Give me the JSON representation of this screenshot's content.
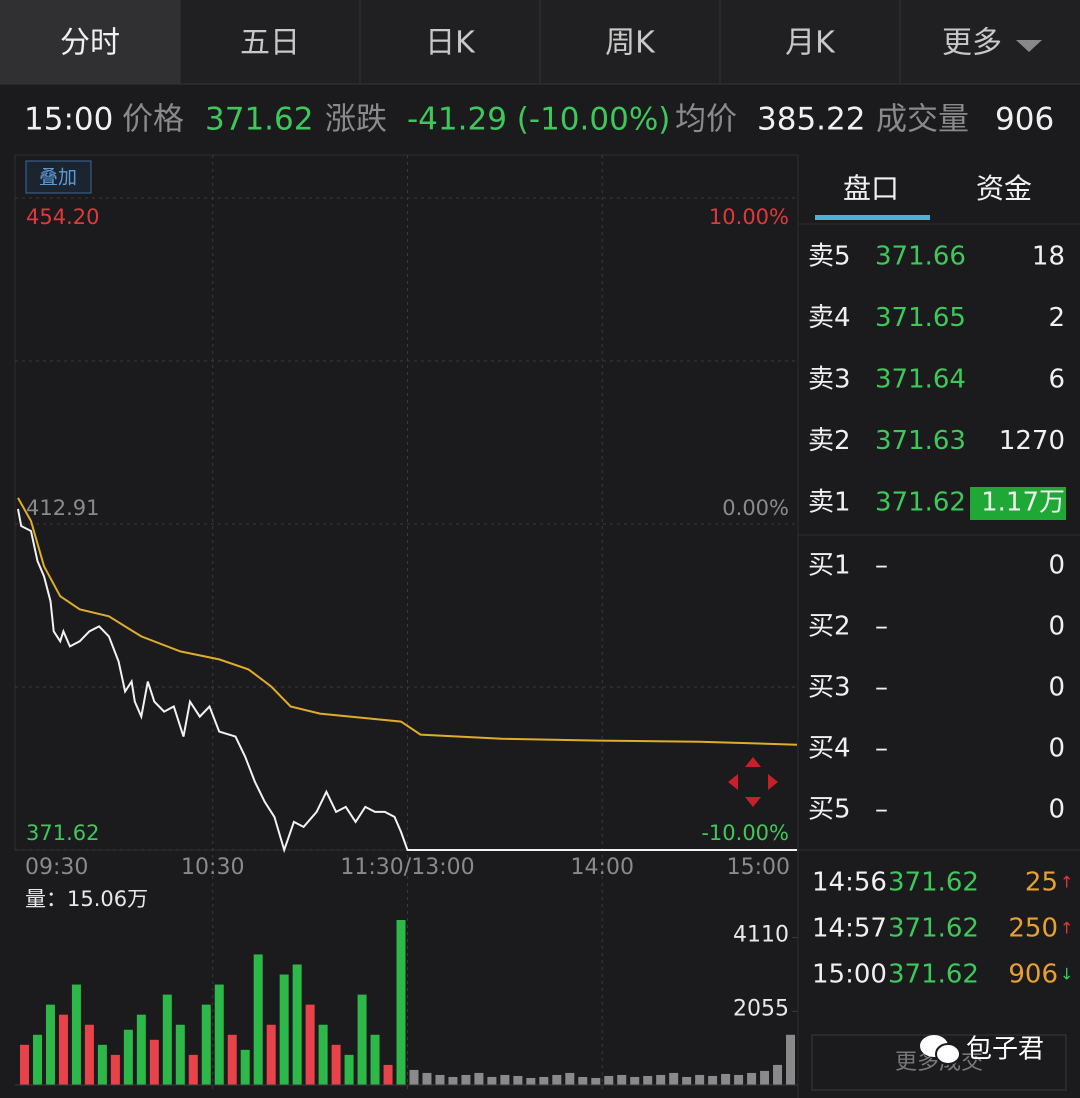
{
  "tabs": [
    "分时",
    "五日",
    "日K",
    "周K",
    "月K",
    "更多"
  ],
  "quote": {
    "time": "15:00",
    "price_label": "价格",
    "price": "371.62",
    "change_label": "涨跌",
    "change": "-41.29 (-10.00%)",
    "avg_label": "均价",
    "avg": "385.22",
    "volume_label": "成交量",
    "volume": "906"
  },
  "overlay_button": "叠加",
  "price_chart": {
    "type": "line",
    "xlim": [
      0,
      240
    ],
    "xticks": [
      {
        "value": 0,
        "label": "09:30"
      },
      {
        "value": 60,
        "label": "10:30"
      },
      {
        "value": 120,
        "label": "11:30/13:00"
      },
      {
        "value": 180,
        "label": "14:00"
      },
      {
        "value": 240,
        "label": "15:00"
      }
    ],
    "ylim": [
      371.62,
      454.2
    ],
    "yticks": [
      {
        "value": 454.2,
        "label": "454.20"
      },
      412.91,
      371.62
    ],
    "y2lim": [
      -10,
      10
    ],
    "y2ticks": [
      {
        "value": 10,
        "label": "10.00%"
      },
      {
        "value": 0,
        "label": "0.00%"
      },
      {
        "value": -10,
        "label": "-10.00%"
      }
    ],
    "grid": true,
    "series": [
      {
        "color": "#f2f2f2",
        "x": [
          0,
          1,
          4,
          6,
          8,
          10,
          11,
          13,
          14,
          16,
          19,
          22,
          25,
          28,
          31,
          33,
          35,
          36,
          38,
          40,
          42,
          45,
          48,
          51,
          53,
          56,
          59,
          62,
          67,
          70,
          73,
          76,
          79,
          82,
          85,
          88,
          92,
          95,
          98,
          101,
          104,
          107,
          110,
          113,
          116,
          118,
          120,
          240
        ],
        "values": [
          414.82,
          412.66,
          412.02,
          408.21,
          406.3,
          403.13,
          399.32,
          398.05,
          399.32,
          397.41,
          398.05,
          399.32,
          399.95,
          398.68,
          395.5,
          391.69,
          392.96,
          390.42,
          388.52,
          392.96,
          390.42,
          389.15,
          389.79,
          385.98,
          390.42,
          388.52,
          389.79,
          386.61,
          385.98,
          383.43,
          380.26,
          377.72,
          375.81,
          371.62,
          375.18,
          374.54,
          376.45,
          378.99,
          376.45,
          377.08,
          375.18,
          377.08,
          376.45,
          376.45,
          375.81,
          373.91,
          371.62,
          371.62
        ]
      },
      {
        "color": "#e0ac2c",
        "x": [
          0,
          4,
          8,
          13,
          19,
          28,
          38,
          50,
          62,
          71,
          78,
          84,
          93,
          118,
          124,
          149,
          179,
          210,
          240
        ],
        "values": [
          416.21,
          413.29,
          407.57,
          403.76,
          402.11,
          401.22,
          398.68,
          396.77,
          395.76,
          394.49,
          392.33,
          389.79,
          388.9,
          387.88,
          386.23,
          385.72,
          385.47,
          385.34,
          384.96
        ]
      }
    ]
  },
  "volume_chart": {
    "type": "bar",
    "title": "量：15.06万",
    "xlim": [
      0,
      240
    ],
    "ylim": [
      0,
      4600
    ],
    "yticks": [
      2055,
      4110
    ],
    "x": [
      0,
      4,
      8,
      12,
      16,
      20,
      24,
      28,
      32,
      36,
      40,
      44,
      48,
      52,
      56,
      60,
      64,
      68,
      72,
      76,
      80,
      84,
      88,
      92,
      96,
      100,
      104,
      108,
      112,
      116,
      120,
      124,
      128,
      132,
      136,
      140,
      144,
      148,
      152,
      156,
      160,
      164,
      168,
      172,
      176,
      180,
      184,
      188,
      192,
      196,
      200,
      204,
      208,
      212,
      216,
      220,
      224,
      228,
      232,
      236
    ],
    "values": [
      1120,
      1400,
      2240,
      1960,
      2800,
      1680,
      1120,
      840,
      1540,
      1960,
      1260,
      2520,
      1680,
      840,
      2240,
      2800,
      1400,
      980,
      3640,
      1680,
      3080,
      3360,
      2240,
      1680,
      1120,
      840,
      2520,
      1400,
      560,
      4600,
      420,
      336,
      280,
      224,
      280,
      336,
      224,
      280,
      252,
      196,
      224,
      280,
      336,
      224,
      196,
      252,
      280,
      224,
      252,
      280,
      336,
      224,
      280,
      252,
      308,
      280,
      336,
      392,
      560,
      1400
    ],
    "colors": [
      "#e8424a",
      "#2db84a",
      "#2db84a",
      "#e8424a",
      "#2db84a",
      "#e8424a",
      "#2db84a",
      "#e8424a",
      "#2db84a",
      "#2db84a",
      "#e8424a",
      "#2db84a",
      "#2db84a",
      "#e8424a",
      "#2db84a",
      "#2db84a",
      "#e8424a",
      "#2db84a",
      "#2db84a",
      "#e8424a",
      "#2db84a",
      "#2db84a",
      "#e8424a",
      "#2db84a",
      "#e8424a",
      "#2db84a",
      "#2db84a",
      "#2db84a",
      "#e8424a",
      "#2db84a",
      "#8a8a8a",
      "#8a8a8a",
      "#8a8a8a",
      "#8a8a8a",
      "#8a8a8a",
      "#8a8a8a",
      "#8a8a8a",
      "#8a8a8a",
      "#8a8a8a",
      "#8a8a8a",
      "#8a8a8a",
      "#8a8a8a",
      "#8a8a8a",
      "#8a8a8a",
      "#8a8a8a",
      "#8a8a8a",
      "#8a8a8a",
      "#8a8a8a",
      "#8a8a8a",
      "#8a8a8a",
      "#8a8a8a",
      "#8a8a8a",
      "#8a8a8a",
      "#8a8a8a",
      "#8a8a8a",
      "#8a8a8a",
      "#8a8a8a",
      "#8a8a8a",
      "#8a8a8a",
      "#8a8a8a"
    ]
  },
  "order_book": {
    "tabs": [
      "盘口",
      "资金"
    ],
    "asks": [
      {
        "label": "卖5",
        "price": "371.66",
        "volume": "18"
      },
      {
        "label": "卖4",
        "price": "371.65",
        "volume": "2"
      },
      {
        "label": "卖3",
        "price": "371.64",
        "volume": "6"
      },
      {
        "label": "卖2",
        "price": "371.63",
        "volume": "1270"
      },
      {
        "label": "卖1",
        "price": "371.62",
        "volume": "1.17万"
      }
    ],
    "bids": [
      {
        "label": "买1",
        "price": "–",
        "volume": "0"
      },
      {
        "label": "买2",
        "price": "–",
        "volume": "0"
      },
      {
        "label": "买3",
        "price": "–",
        "volume": "0"
      },
      {
        "label": "买4",
        "price": "–",
        "volume": "0"
      },
      {
        "label": "买5",
        "price": "–",
        "volume": "0"
      }
    ]
  },
  "trades": [
    {
      "time": "14:56",
      "price": "371.62",
      "volume": "25",
      "arrow": "↑"
    },
    {
      "time": "14:57",
      "price": "371.62",
      "volume": "250",
      "arrow": "↑"
    },
    {
      "time": "15:00",
      "price": "371.62",
      "volume": "906",
      "arrow": "↓"
    }
  ],
  "more_trades_button": "更多成交",
  "watermark": "包子君"
}
